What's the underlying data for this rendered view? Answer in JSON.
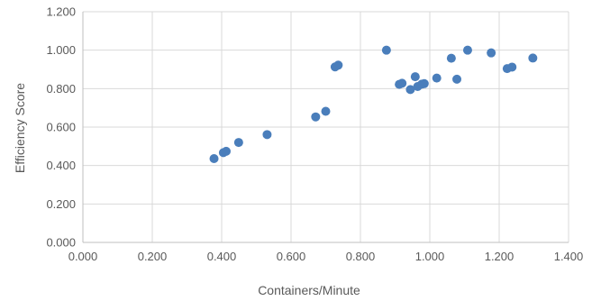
{
  "chart_data": {
    "type": "scatter",
    "title": "",
    "xlabel": "Containers/Minute",
    "ylabel": "Efficiency Score",
    "xlim": [
      0,
      1.4
    ],
    "ylim": [
      0,
      1.2
    ],
    "x_ticks": [
      0,
      0.2,
      0.4,
      0.6,
      0.8,
      1.0,
      1.2,
      1.4
    ],
    "y_ticks": [
      0,
      0.2,
      0.4,
      0.6,
      0.8,
      1.0,
      1.2
    ],
    "x_tick_labels": [
      "0.000",
      "0.200",
      "0.400",
      "0.600",
      "0.800",
      "1.000",
      "1.200",
      "1.400"
    ],
    "y_tick_labels": [
      "0.000",
      "0.200",
      "0.400",
      "0.600",
      "0.800",
      "1.000",
      "1.200"
    ],
    "grid": true,
    "marker_color": "#4a7ebb",
    "series": [
      {
        "points": [
          {
            "x": 0.378,
            "y": 0.436
          },
          {
            "x": 0.405,
            "y": 0.467
          },
          {
            "x": 0.413,
            "y": 0.474
          },
          {
            "x": 0.449,
            "y": 0.52
          },
          {
            "x": 0.531,
            "y": 0.561
          },
          {
            "x": 0.671,
            "y": 0.653
          },
          {
            "x": 0.7,
            "y": 0.682
          },
          {
            "x": 0.727,
            "y": 0.913
          },
          {
            "x": 0.736,
            "y": 0.922
          },
          {
            "x": 0.875,
            "y": 1.0
          },
          {
            "x": 0.912,
            "y": 0.822
          },
          {
            "x": 0.92,
            "y": 0.828
          },
          {
            "x": 0.944,
            "y": 0.795
          },
          {
            "x": 0.958,
            "y": 0.862
          },
          {
            "x": 0.965,
            "y": 0.811
          },
          {
            "x": 0.977,
            "y": 0.823
          },
          {
            "x": 0.984,
            "y": 0.826
          },
          {
            "x": 1.02,
            "y": 0.855
          },
          {
            "x": 1.062,
            "y": 0.958
          },
          {
            "x": 1.078,
            "y": 0.849
          },
          {
            "x": 1.109,
            "y": 1.0
          },
          {
            "x": 1.177,
            "y": 0.986
          },
          {
            "x": 1.223,
            "y": 0.904
          },
          {
            "x": 1.237,
            "y": 0.912
          },
          {
            "x": 1.297,
            "y": 0.959
          }
        ]
      }
    ]
  }
}
